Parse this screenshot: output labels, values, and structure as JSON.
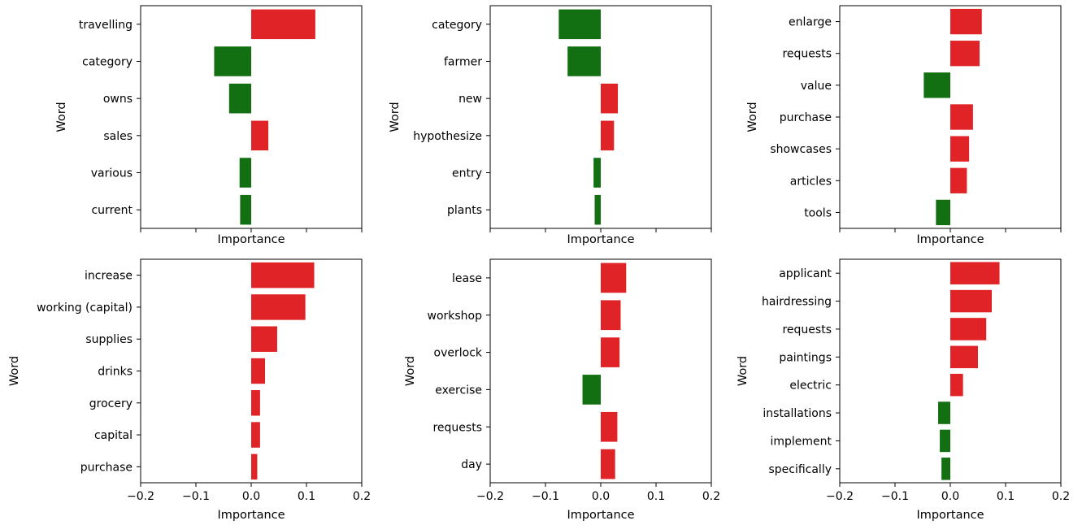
{
  "colors": {
    "positive": "#e02326",
    "negative": "#127012"
  },
  "chart_data": [
    {
      "type": "bar",
      "orientation": "horizontal",
      "categories": [
        "travelling",
        "category",
        "owns",
        "sales",
        "various",
        "current"
      ],
      "values": [
        0.116,
        -0.067,
        -0.04,
        0.031,
        -0.021,
        -0.02
      ],
      "xlabel": "Importance",
      "ylabel": "Word",
      "xlim": [
        -0.2,
        0.2
      ],
      "xticks": [],
      "grid": false
    },
    {
      "type": "bar",
      "orientation": "horizontal",
      "categories": [
        "category",
        "farmer",
        "new",
        "hypothesize",
        "entry",
        "plants"
      ],
      "values": [
        -0.076,
        -0.06,
        0.031,
        0.024,
        -0.013,
        -0.011
      ],
      "xlabel": "Importance",
      "ylabel": "Word",
      "xlim": [
        -0.2,
        0.2
      ],
      "xticks": [],
      "grid": false
    },
    {
      "type": "bar",
      "orientation": "horizontal",
      "categories": [
        "enlarge",
        "requests",
        "value",
        "purchase",
        "showcases",
        "articles",
        "tools"
      ],
      "values": [
        0.057,
        0.053,
        -0.048,
        0.041,
        0.034,
        0.03,
        -0.026
      ],
      "xlabel": "Importance",
      "ylabel": "Word",
      "xlim": [
        -0.2,
        0.2
      ],
      "xticks": [],
      "grid": false
    },
    {
      "type": "bar",
      "orientation": "horizontal",
      "categories": [
        "increase",
        "working (capital)",
        "supplies",
        "drinks",
        "grocery",
        "capital",
        "purchase"
      ],
      "values": [
        0.114,
        0.098,
        0.047,
        0.025,
        0.016,
        0.016,
        0.011
      ],
      "xlabel": "Importance",
      "ylabel": "Word",
      "xlim": [
        -0.2,
        0.2
      ],
      "xticks": [
        "−0.2",
        "−0.1",
        "0.0",
        "0.1",
        "0.2"
      ],
      "grid": false
    },
    {
      "type": "bar",
      "orientation": "horizontal",
      "categories": [
        "lease",
        "workshop",
        "overlock",
        "exercise",
        "requests",
        "day"
      ],
      "values": [
        0.046,
        0.036,
        0.034,
        -0.033,
        0.03,
        0.026
      ],
      "xlabel": "Importance",
      "ylabel": "Word",
      "xlim": [
        -0.2,
        0.2
      ],
      "xticks": [
        "−0.2",
        "−0.1",
        "0.0",
        "0.1",
        "0.2"
      ],
      "grid": false
    },
    {
      "type": "bar",
      "orientation": "horizontal",
      "categories": [
        "applicant",
        "hairdressing",
        "requests",
        "paintings",
        "electric",
        "installations",
        "implement",
        "specifically"
      ],
      "values": [
        0.089,
        0.075,
        0.065,
        0.05,
        0.023,
        -0.022,
        -0.019,
        -0.016
      ],
      "xlabel": "Importance",
      "ylabel": "Word",
      "xlim": [
        -0.2,
        0.2
      ],
      "xticks": [
        "−0.2",
        "−0.1",
        "0.0",
        "0.1",
        "0.2"
      ],
      "grid": false
    }
  ]
}
